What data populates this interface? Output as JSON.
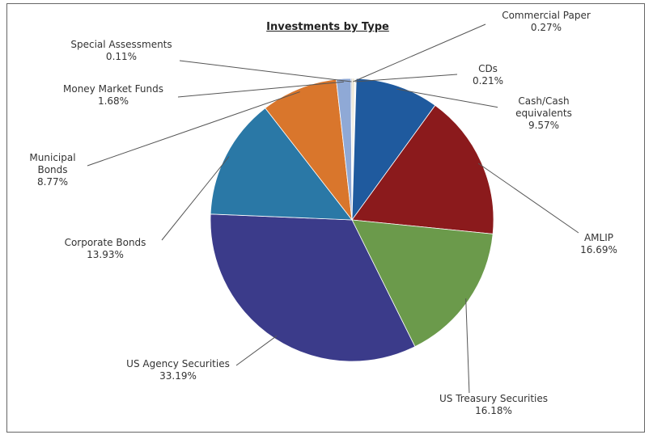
{
  "chart_data": {
    "type": "pie",
    "title": "Investments by Type",
    "categories": [
      "Commercial Paper",
      "CDs",
      "Cash/Cash equivalents",
      "AMLIP",
      "US Treasury Securities",
      "US Agency Securities",
      "Corporate Bonds",
      "Municipal Bonds",
      "Money Market Funds",
      "Special Assessments"
    ],
    "values": [
      0.27,
      0.21,
      9.57,
      16.69,
      16.18,
      33.19,
      13.93,
      8.77,
      1.68,
      0.11
    ],
    "value_labels": [
      "0.27%",
      "0.21%",
      "9.57%",
      "16.69%",
      "16.18%",
      "33.19%",
      "13.93%",
      "8.77%",
      "1.68%",
      "0.11%"
    ],
    "colors": [
      "#e8e0c8",
      "#f2f2f2",
      "#1f5a9e",
      "#8b1a1c",
      "#6b9a4b",
      "#3b3b8a",
      "#2a78a6",
      "#d9762c",
      "#8fa9d6",
      "#9a9a9a"
    ]
  }
}
